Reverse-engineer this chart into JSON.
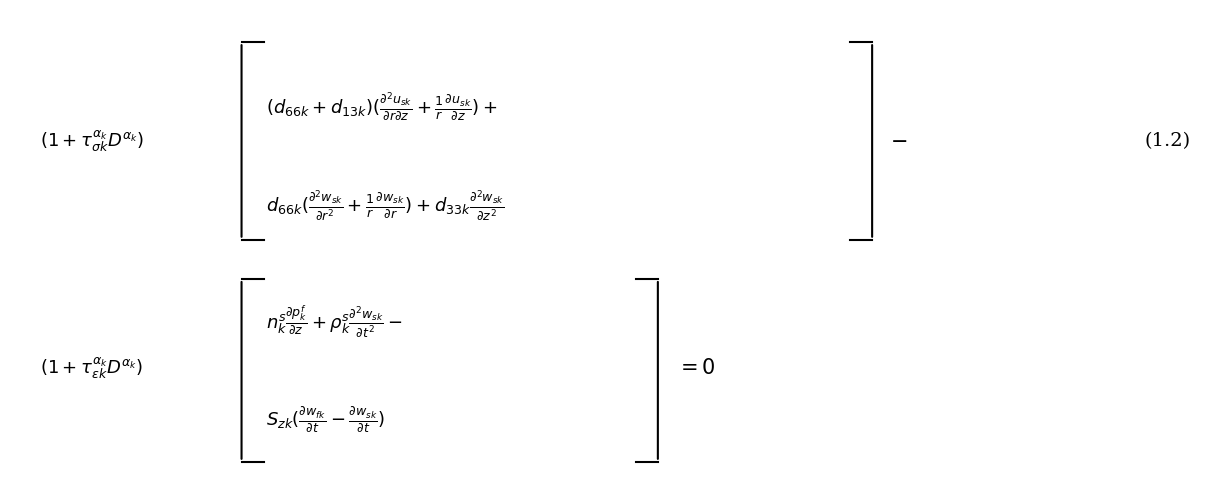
{
  "background_color": "#ffffff",
  "figsize": [
    12.3,
    4.99
  ],
  "dpi": 100,
  "equation_number": "(1.2)",
  "text_color": "#000000",
  "fontsize": 13
}
